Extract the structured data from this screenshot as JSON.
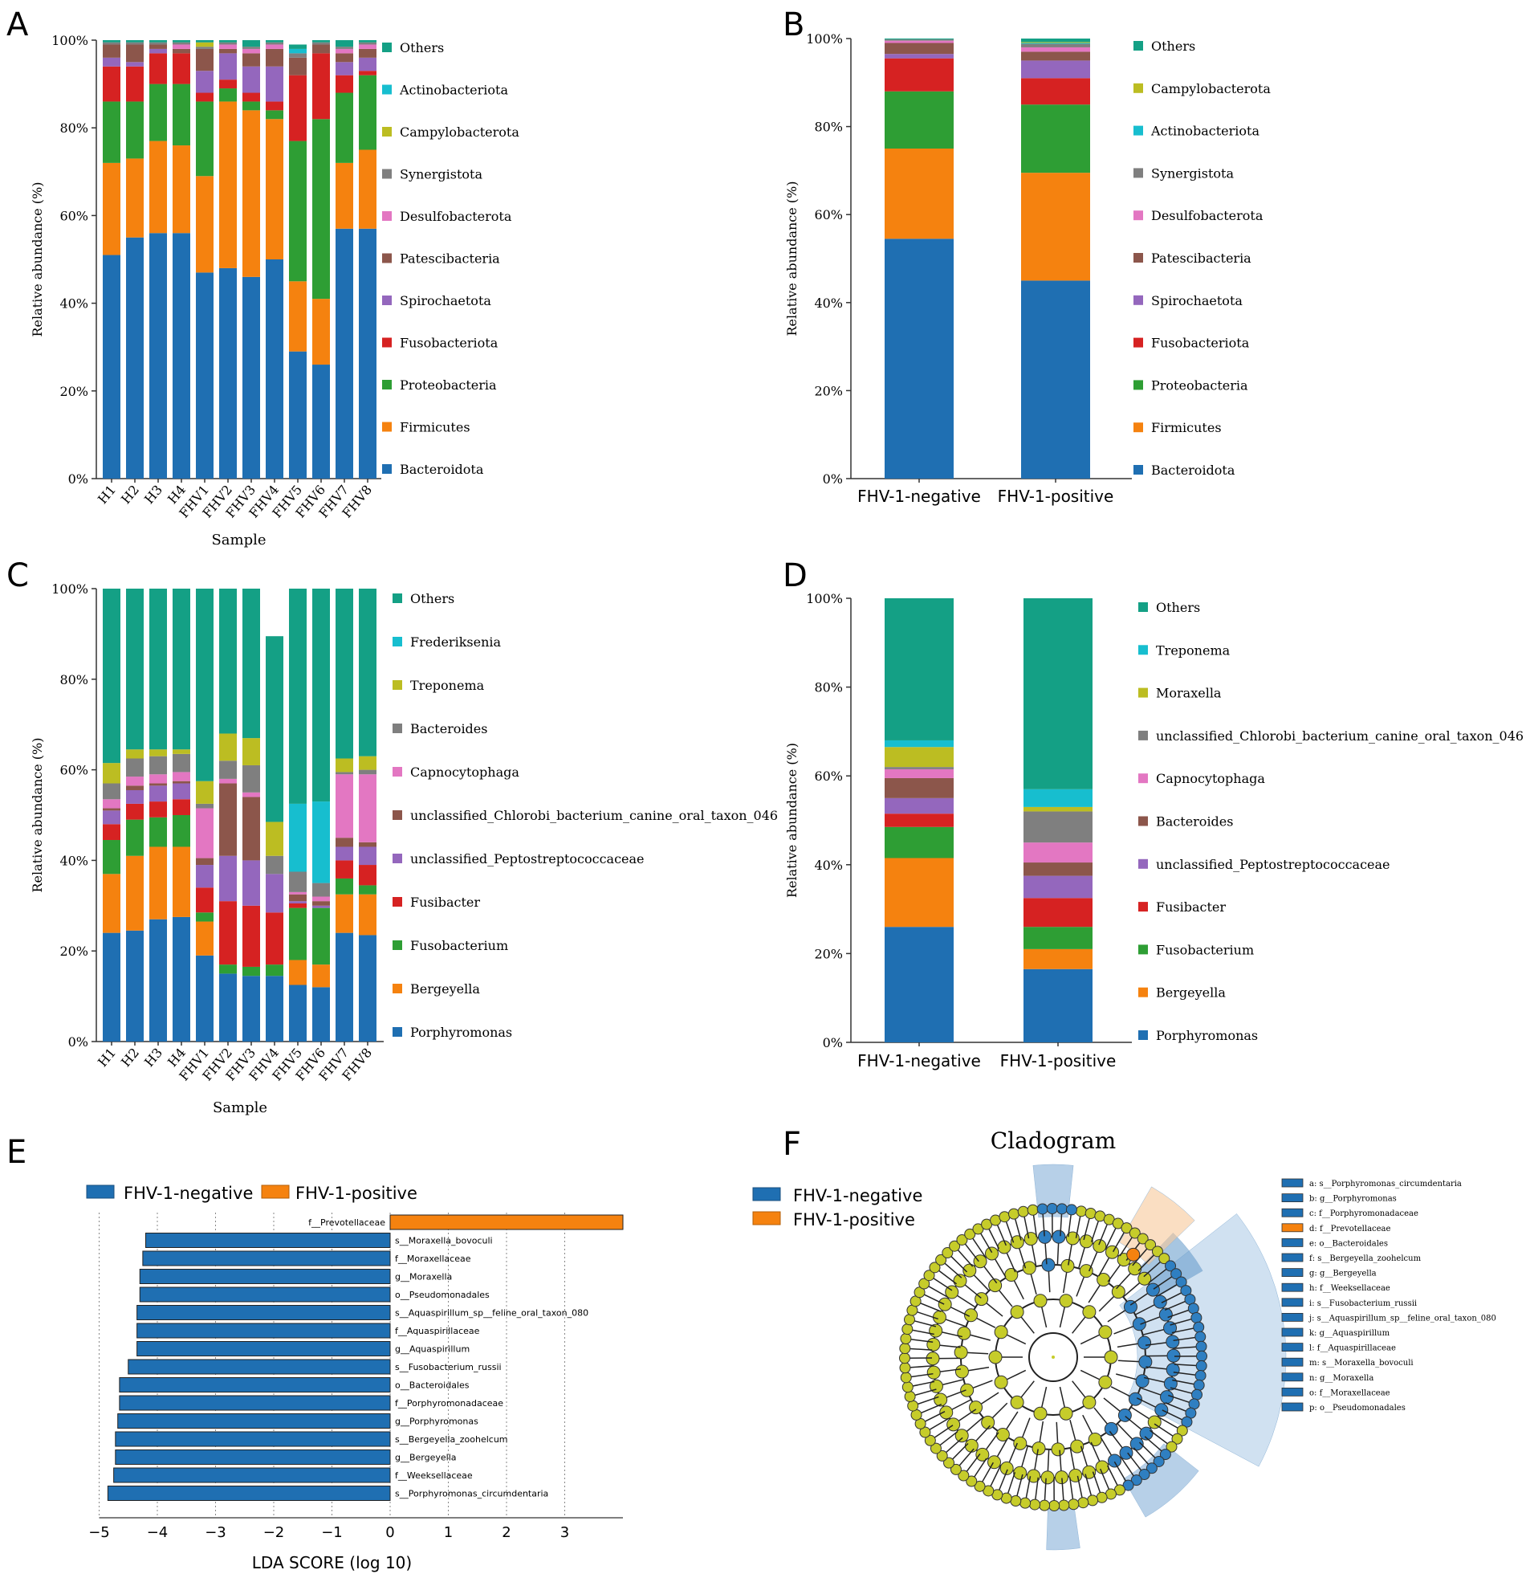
{
  "colors": {
    "Bacteroidota": "#1f6fb2",
    "Firmicutes": "#f5820f",
    "Proteobacteria": "#2e9e34",
    "Fusobacteriota": "#d62222",
    "Spirochaetota": "#9467bd",
    "Patescibacteria": "#8c564b",
    "Desulfobacterota": "#e377c2",
    "Synergistota": "#7f7f7f",
    "Campylobacterota": "#bcbd22",
    "Actinobacteriota": "#17becf",
    "Others": "#14a085",
    "negative": "#1f6fb2",
    "positive": "#f5820f",
    "node": "#c6cc2a",
    "node_neg": "#2f7fc1"
  },
  "chart_data": [
    {
      "panel": "A",
      "type": "bar",
      "stacked": true,
      "ylabel": "Relative abundance (%)",
      "xlabel": "Sample",
      "yticks": [
        "0%",
        "20%",
        "40%",
        "60%",
        "80%",
        "100%"
      ],
      "ylim": [
        0,
        100
      ],
      "categories": [
        "H1",
        "H2",
        "H3",
        "H4",
        "FHV1",
        "FHV2",
        "FHV3",
        "FHV4",
        "FHV5",
        "FHV6",
        "FHV7",
        "FHV8"
      ],
      "series": [
        {
          "name": "Bacteroidota",
          "values": [
            51,
            55,
            56,
            56,
            47,
            48,
            46,
            50,
            29,
            26,
            57,
            57
          ]
        },
        {
          "name": "Firmicutes",
          "values": [
            21,
            18,
            21,
            20,
            22,
            38,
            38,
            32,
            16,
            15,
            15,
            18
          ]
        },
        {
          "name": "Proteobacteria",
          "values": [
            14,
            13,
            13,
            14,
            17,
            3,
            2,
            2,
            32,
            41,
            16,
            17
          ]
        },
        {
          "name": "Fusobacteriota",
          "values": [
            8,
            8,
            7,
            7,
            2,
            2,
            2,
            2,
            15,
            15,
            4,
            1
          ]
        },
        {
          "name": "Spirochaetota",
          "values": [
            2,
            1,
            1,
            0,
            5,
            6,
            6,
            8,
            0,
            0,
            3,
            3
          ]
        },
        {
          "name": "Patescibacteria",
          "values": [
            3,
            4,
            1,
            1,
            5,
            1,
            3,
            4,
            4,
            2,
            2,
            2
          ]
        },
        {
          "name": "Desulfobacterota",
          "values": [
            0,
            0,
            0,
            1,
            0,
            1,
            1,
            1,
            0,
            0,
            1,
            1
          ]
        },
        {
          "name": "Synergistota",
          "values": [
            0.5,
            0.5,
            0.5,
            0.5,
            0.5,
            0.5,
            0.5,
            0.5,
            1,
            0.5,
            0.5,
            0.5
          ]
        },
        {
          "name": "Campylobacterota",
          "values": [
            0,
            0,
            0,
            0,
            1,
            0,
            0,
            0,
            0,
            0,
            0,
            0
          ]
        },
        {
          "name": "Actinobacteriota",
          "values": [
            0,
            0,
            0,
            0,
            0,
            0,
            0,
            0,
            1,
            0,
            0,
            0
          ]
        },
        {
          "name": "Others",
          "values": [
            0.5,
            0.5,
            0.5,
            0.5,
            0.5,
            0.5,
            1.5,
            0.5,
            1,
            0.5,
            1.5,
            0.5
          ]
        }
      ],
      "legend": [
        "Others",
        "Actinobacteriota",
        "Campylobacterota",
        "Synergistota",
        "Desulfobacterota",
        "Patescibacteria",
        "Spirochaetota",
        "Fusobacteriota",
        "Proteobacteria",
        "Firmicutes",
        "Bacteroidota"
      ]
    },
    {
      "panel": "B",
      "type": "bar",
      "stacked": true,
      "ylabel": "Relative abundance (%)",
      "xlabel": "",
      "yticks": [
        "0%",
        "20%",
        "40%",
        "60%",
        "80%",
        "100%"
      ],
      "ylim": [
        0,
        100
      ],
      "categories": [
        "FHV-1-negative",
        "FHV-1-positive"
      ],
      "series": [
        {
          "name": "Bacteroidota",
          "values": [
            54.5,
            45
          ]
        },
        {
          "name": "Firmicutes",
          "values": [
            20.5,
            24.5
          ]
        },
        {
          "name": "Proteobacteria",
          "values": [
            13,
            15.5
          ]
        },
        {
          "name": "Fusobacteriota",
          "values": [
            7.5,
            6
          ]
        },
        {
          "name": "Spirochaetota",
          "values": [
            1,
            4
          ]
        },
        {
          "name": "Patescibacteria",
          "values": [
            2.5,
            2
          ]
        },
        {
          "name": "Desulfobacterota",
          "values": [
            0.5,
            1
          ]
        },
        {
          "name": "Synergistota",
          "values": [
            0.3,
            0.8
          ]
        },
        {
          "name": "Actinobacteriota",
          "values": [
            0,
            0.2
          ]
        },
        {
          "name": "Campylobacterota",
          "values": [
            0,
            0.2
          ]
        },
        {
          "name": "Others",
          "values": [
            0.2,
            0.8
          ]
        }
      ],
      "legend": [
        "Others",
        "Campylobacterota",
        "Actinobacteriota",
        "Synergistota",
        "Desulfobacterota",
        "Patescibacteria",
        "Spirochaetota",
        "Fusobacteriota",
        "Proteobacteria",
        "Firmicutes",
        "Bacteroidota"
      ]
    },
    {
      "panel": "C",
      "type": "bar",
      "stacked": true,
      "ylabel": "Relative abundance (%)",
      "xlabel": "Sample",
      "yticks": [
        "0%",
        "20%",
        "40%",
        "60%",
        "80%",
        "100%"
      ],
      "ylim": [
        0,
        100
      ],
      "categories": [
        "H1",
        "H2",
        "H3",
        "H4",
        "FHV1",
        "FHV2",
        "FHV3",
        "FHV4",
        "FHV5",
        "FHV6",
        "FHV7",
        "FHV8"
      ],
      "series": [
        {
          "name": "Porphyromonas",
          "values": [
            24,
            24.5,
            27,
            27.5,
            19,
            15,
            14.5,
            14.5,
            12.5,
            12,
            24,
            23.5
          ]
        },
        {
          "name": "Bergeyella",
          "values": [
            13,
            16.5,
            16,
            15.5,
            7.5,
            0,
            0,
            0,
            5.5,
            5,
            8.5,
            9
          ]
        },
        {
          "name": "Fusobacterium",
          "values": [
            7.5,
            8,
            6.5,
            7,
            2,
            2,
            2,
            2.5,
            11.5,
            12.5,
            3.5,
            2
          ]
        },
        {
          "name": "Fusibacter",
          "values": [
            3.5,
            3.5,
            3.5,
            3.5,
            5.5,
            14,
            13.5,
            11.5,
            1,
            0,
            4,
            4.5
          ]
        },
        {
          "name": "unclassified_Peptostreptococcaceae",
          "values": [
            3,
            3,
            3.5,
            3.5,
            5,
            10,
            10,
            8.5,
            0.5,
            0.5,
            3,
            4
          ]
        },
        {
          "name": "unclassified_Chlorobi_bacterium_canine_oral_taxon_046",
          "values": [
            0.5,
            1,
            0.5,
            0.5,
            1.5,
            16,
            14,
            0,
            1.5,
            1,
            2,
            1
          ]
        },
        {
          "name": "Capnocytophaga",
          "values": [
            2,
            2,
            2,
            2,
            11,
            1,
            1,
            0,
            0.5,
            1,
            14,
            15
          ]
        },
        {
          "name": "Bacteroides",
          "values": [
            3.5,
            4,
            4,
            4,
            1,
            4,
            6,
            4,
            4.5,
            3,
            0.5,
            1
          ]
        },
        {
          "name": "Treponema",
          "values": [
            4.5,
            2,
            1.5,
            1,
            5,
            6,
            6,
            7.5,
            0,
            0,
            3,
            3
          ]
        },
        {
          "name": "Frederiksenia",
          "values": [
            0,
            0,
            0,
            0,
            0,
            0,
            0,
            0,
            15,
            18,
            0,
            0
          ]
        },
        {
          "name": "Others",
          "values": [
            38.5,
            35.5,
            35.5,
            35.5,
            42.5,
            32,
            33,
            41,
            47.5,
            47,
            37.5,
            37
          ]
        }
      ],
      "legend": [
        "Others",
        "Frederiksenia",
        "Treponema",
        "Bacteroides",
        "Capnocytophaga",
        "unclassified_Chlorobi_bacterium_canine_oral_taxon_046",
        "unclassified_Peptostreptococcaceae",
        "Fusibacter",
        "Fusobacterium",
        "Bergeyella",
        "Porphyromonas"
      ]
    },
    {
      "panel": "D",
      "type": "bar",
      "stacked": true,
      "ylabel": "Relative abundance (%)",
      "xlabel": "",
      "yticks": [
        "0%",
        "20%",
        "40%",
        "60%",
        "80%",
        "100%"
      ],
      "ylim": [
        0,
        100
      ],
      "categories": [
        "FHV-1-negative",
        "FHV-1-positive"
      ],
      "series": [
        {
          "name": "Porphyromonas",
          "values": [
            26,
            16.5
          ]
        },
        {
          "name": "Bergeyella",
          "values": [
            15.5,
            4.5
          ]
        },
        {
          "name": "Fusobacterium",
          "values": [
            7,
            5
          ]
        },
        {
          "name": "Fusibacter",
          "values": [
            3,
            6.5
          ]
        },
        {
          "name": "unclassified_Peptostreptococcaceae",
          "values": [
            3.5,
            5
          ]
        },
        {
          "name": "Bacteroides",
          "values": [
            4.5,
            3
          ]
        },
        {
          "name": "Capnocytophaga",
          "values": [
            2,
            4.5
          ]
        },
        {
          "name": "unclassified_Chlorobi_bacterium_canine_oral_taxon_046",
          "values": [
            0.5,
            7
          ]
        },
        {
          "name": "Moraxella",
          "values": [
            4.5,
            1
          ]
        },
        {
          "name": "Treponema",
          "values": [
            1.5,
            4
          ]
        },
        {
          "name": "Others",
          "values": [
            32,
            43
          ]
        }
      ],
      "legend": [
        "Others",
        "Treponema",
        "Moraxella",
        "unclassified_Chlorobi_bacterium_canine_oral_taxon_046",
        "Capnocytophaga",
        "Bacteroides",
        "unclassified_Peptostreptococcaceae",
        "Fusibacter",
        "Fusobacterium",
        "Bergeyella",
        "Porphyromonas"
      ]
    },
    {
      "panel": "E",
      "type": "bar",
      "orientation": "horizontal",
      "xlabel": "LDA SCORE (log 10)",
      "xlim": [
        -5,
        4
      ],
      "xticks": [
        "−5",
        "−4",
        "−3",
        "−2",
        "−1",
        "0",
        "1",
        "2",
        "3"
      ],
      "legend": [
        "FHV-1-negative",
        "FHV-1-positive"
      ],
      "bars": [
        {
          "label": "f__Prevotellaceae",
          "value": 4.0,
          "group": "FHV-1-positive"
        },
        {
          "label": "s__Moraxella_bovoculi",
          "value": -4.2,
          "group": "FHV-1-negative"
        },
        {
          "label": "f__Moraxellaceae",
          "value": -4.25,
          "group": "FHV-1-negative"
        },
        {
          "label": "g__Moraxella",
          "value": -4.3,
          "group": "FHV-1-negative"
        },
        {
          "label": "o__Pseudomonadales",
          "value": -4.3,
          "group": "FHV-1-negative"
        },
        {
          "label": "s__Aquaspirillum_sp__feline_oral_taxon_080",
          "value": -4.35,
          "group": "FHV-1-negative"
        },
        {
          "label": "f__Aquaspirillaceae",
          "value": -4.35,
          "group": "FHV-1-negative"
        },
        {
          "label": "g__Aquaspirillum",
          "value": -4.35,
          "group": "FHV-1-negative"
        },
        {
          "label": "s__Fusobacterium_russii",
          "value": -4.5,
          "group": "FHV-1-negative"
        },
        {
          "label": "o__Bacteroidales",
          "value": -4.65,
          "group": "FHV-1-negative"
        },
        {
          "label": "f__Porphyromonadaceae",
          "value": -4.65,
          "group": "FHV-1-negative"
        },
        {
          "label": "g__Porphyromonas",
          "value": -4.68,
          "group": "FHV-1-negative"
        },
        {
          "label": "s__Bergeyella_zoohelcum",
          "value": -4.72,
          "group": "FHV-1-negative"
        },
        {
          "label": "g__Bergeyella",
          "value": -4.72,
          "group": "FHV-1-negative"
        },
        {
          "label": "f__Weeksellaceae",
          "value": -4.75,
          "group": "FHV-1-negative"
        },
        {
          "label": "s__Porphyromonas_circumdentaria",
          "value": -4.85,
          "group": "FHV-1-negative"
        }
      ]
    }
  ],
  "panel_labels": {
    "A": "A",
    "B": "B",
    "C": "C",
    "D": "D",
    "E": "E",
    "F": "F"
  },
  "cladogram": {
    "title": "Cladogram",
    "legend": [
      "FHV-1-negative",
      "FHV-1-positive"
    ],
    "taxa": [
      {
        "text": "a: s__Porphyromonas_circumdentaria",
        "group": "negative"
      },
      {
        "text": "b: g__Porphyromonas",
        "group": "negative"
      },
      {
        "text": "c: f__Porphyromonadaceae",
        "group": "negative"
      },
      {
        "text": "d: f__Prevotellaceae",
        "group": "positive"
      },
      {
        "text": "e: o__Bacteroidales",
        "group": "negative"
      },
      {
        "text": "f: s__Bergeyella_zoohelcum",
        "group": "negative"
      },
      {
        "text": "g: g__Bergeyella",
        "group": "negative"
      },
      {
        "text": "h: f__Weeksellaceae",
        "group": "negative"
      },
      {
        "text": "i: s__Fusobacterium_russii",
        "group": "negative"
      },
      {
        "text": "j: s__Aquaspirillum_sp__feline_oral_taxon_080",
        "group": "negative"
      },
      {
        "text": "k: g__Aquaspirillum",
        "group": "negative"
      },
      {
        "text": "l: f__Aquaspirillaceae",
        "group": "negative"
      },
      {
        "text": "m: s__Moraxella_bovoculi",
        "group": "negative"
      },
      {
        "text": "n: g__Moraxella",
        "group": "negative"
      },
      {
        "text": "o: f__Moraxellaceae",
        "group": "negative"
      },
      {
        "text": "p: o__Pseudomonadales",
        "group": "negative"
      }
    ]
  }
}
